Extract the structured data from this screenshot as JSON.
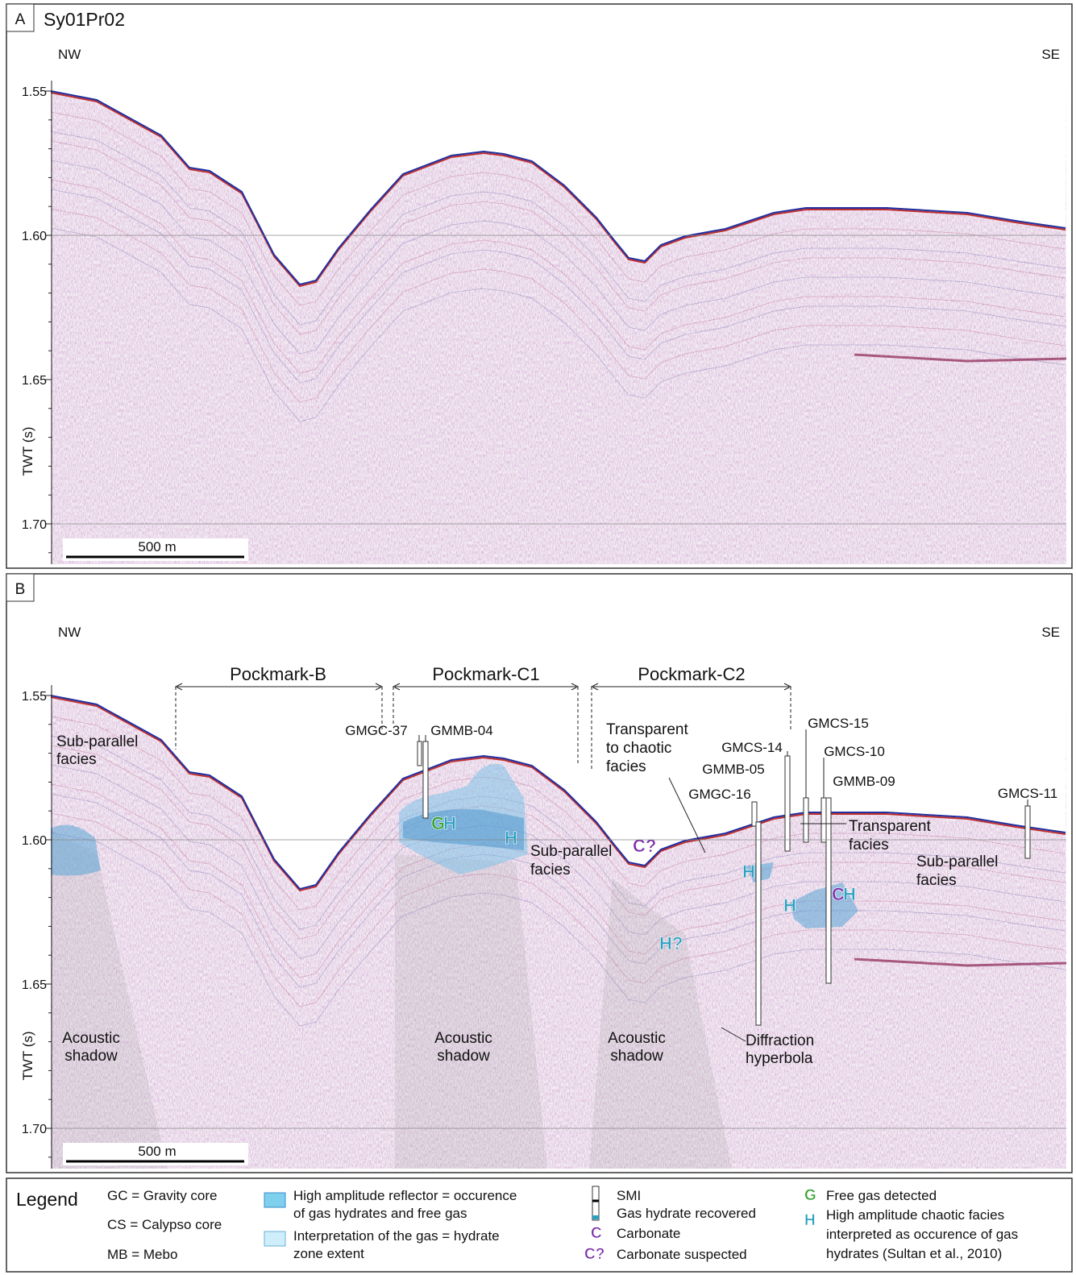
{
  "panel_a": {
    "letter": "A",
    "title": "Sy01Pr02",
    "left_direction": "NW",
    "right_direction": "SE",
    "y_axis_label": "TWT (s)",
    "y_ticks": [
      "1.55",
      "1.60",
      "1.65",
      "1.70"
    ],
    "scale_bar": "500 m"
  },
  "panel_b": {
    "letter": "B",
    "left_direction": "NW",
    "right_direction": "SE",
    "y_axis_label": "TWT (s)",
    "y_ticks": [
      "1.55",
      "1.60",
      "1.65",
      "1.70"
    ],
    "scale_bar": "500 m",
    "pockmarks": [
      "Pockmark-B",
      "Pockmark-C1",
      "Pockmark-C2"
    ],
    "cores": [
      "GMGC-37",
      "GMMB-04",
      "GMCS-14",
      "GMMB-05",
      "GMGC-16",
      "GMCS-15",
      "GMCS-10",
      "GMMB-09",
      "GMCS-11"
    ],
    "annotations": {
      "sub_parallel_left": [
        "Sub-parallel",
        "facies"
      ],
      "transparent_chaotic": [
        "Transparent",
        "to chaotic",
        "facies"
      ],
      "transparent": [
        "Transparent",
        "facies"
      ],
      "sub_parallel_mid": [
        "Sub-parallel",
        "facies"
      ],
      "sub_parallel_right": [
        "Sub-parallel",
        "facies"
      ],
      "shadow_left": [
        "Acoustic",
        "shadow"
      ],
      "shadow_mid": [
        "Acoustic",
        "shadow"
      ],
      "shadow_right": [
        "Acoustic",
        "shadow"
      ],
      "diffraction": [
        "Diffraction",
        "hyperbola"
      ]
    },
    "symbols": [
      "C?",
      "G",
      "H",
      "H",
      "H",
      "H",
      "C",
      "H",
      "H?"
    ]
  },
  "legend": {
    "title": "Legend",
    "abbreviations": [
      "GC = Gravity core",
      "CS = Calypso core",
      "MB = Mebo"
    ],
    "high_amplitude": [
      "High amplitude reflector = occurence",
      "of gas hydrates and free gas"
    ],
    "interpretation": [
      "Interpretation of the gas = hydrate",
      "zone extent"
    ],
    "smi": "SMI",
    "hydrate_recovered": "Gas hydrate recovered",
    "carbonate_symbol": "C",
    "carbonate": "Carbonate",
    "carbonate_suspected_symbol": "C?",
    "carbonate_suspected": "Carbonate suspected",
    "gas_symbol": "G",
    "gas": "Free gas detected",
    "hydrate_symbol": "H",
    "hydrate": [
      "High amplitude chaotic facies",
      "interpreted as occurence of gas",
      "hydrates (Sultan et al., 2010)"
    ]
  }
}
